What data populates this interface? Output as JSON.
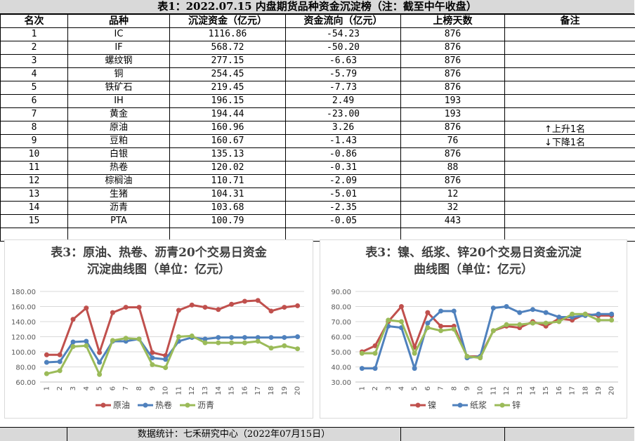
{
  "table": {
    "title": "表1：2022.07.15 内盘期货品种资金沉淀榜（注：截至中午收盘）",
    "headers": [
      "名次",
      "品种",
      "沉淀资金（亿元）",
      "资金流向（亿元）",
      "上榜天数",
      "备注"
    ],
    "rows": [
      [
        "1",
        "IC",
        "1116.86",
        "-54.23",
        "876"
      ],
      [
        "2",
        "IF",
        "568.72",
        "-50.20",
        "876"
      ],
      [
        "3",
        "螺纹钢",
        "277.15",
        "-6.63",
        "876"
      ],
      [
        "4",
        "铜",
        "254.45",
        "-5.79",
        "876"
      ],
      [
        "5",
        "铁矿石",
        "219.45",
        "-7.73",
        "876"
      ],
      [
        "6",
        "IH",
        "196.15",
        "2.49",
        "193"
      ],
      [
        "7",
        "黄金",
        "194.44",
        "-23.00",
        "193"
      ],
      [
        "8",
        "原油",
        "160.96",
        "3.26",
        "876"
      ],
      [
        "9",
        "豆粕",
        "160.67",
        "-1.43",
        "76"
      ],
      [
        "10",
        "白银",
        "135.13",
        "-0.86",
        "876"
      ],
      [
        "11",
        "热卷",
        "120.02",
        "-0.31",
        "88"
      ],
      [
        "12",
        "棕榈油",
        "110.71",
        "-2.09",
        "876"
      ],
      [
        "13",
        "生猪",
        "104.31",
        "-5.01",
        "12"
      ],
      [
        "14",
        "沥青",
        "103.68",
        "-2.35",
        "32"
      ],
      [
        "15",
        "PTA",
        "100.79",
        "-0.05",
        "443"
      ]
    ],
    "legend_up": "上升1名",
    "legend_down": "下降1名",
    "up_arrow": "↑",
    "down_arrow": "↓"
  },
  "footer": {
    "text": "数据统计：七禾研究中心（2022年07月15日）"
  },
  "chart_data": [
    {
      "type": "line",
      "title_line1": "表3：原油、热卷、沥青20个交易日资金",
      "title_line2": "沉淀曲线图（单位：亿元）",
      "x": [
        "1",
        "2",
        "3",
        "4",
        "5",
        "6",
        "7",
        "8",
        "9",
        "10",
        "11",
        "12",
        "13",
        "14",
        "15",
        "16",
        "17",
        "18",
        "19",
        "20"
      ],
      "ylim": [
        60,
        180
      ],
      "yticks": [
        "60.00",
        "80.00",
        "100.00",
        "120.00",
        "140.00",
        "160.00",
        "180.00"
      ],
      "grid": true,
      "legend_position": "bottom",
      "series": [
        {
          "name": "原油",
          "color": "#c0504d",
          "values": [
            96,
            96,
            143,
            158,
            99,
            152,
            159,
            159,
            99,
            95,
            155,
            162,
            159,
            156,
            163,
            167,
            168,
            154,
            159,
            161
          ]
        },
        {
          "name": "热卷",
          "color": "#4f81bd",
          "values": [
            86,
            87,
            113,
            114,
            86,
            114,
            114,
            117,
            92,
            90,
            114,
            119,
            117,
            119,
            119,
            119,
            119,
            119,
            119,
            120
          ]
        },
        {
          "name": "沥青",
          "color": "#9bbb59",
          "values": [
            71,
            75,
            107,
            108,
            70,
            115,
            118,
            117,
            83,
            79,
            120,
            121,
            112,
            112,
            112,
            112,
            114,
            105,
            108,
            104
          ]
        }
      ]
    },
    {
      "type": "line",
      "title_line1": "表3：镍、纸浆、锌20个交易日资金沉淀",
      "title_line2": "曲线图（单位：亿元）",
      "x": [
        "1",
        "2",
        "3",
        "4",
        "5",
        "6",
        "7",
        "8",
        "9",
        "10",
        "11",
        "12",
        "13",
        "14",
        "15",
        "16",
        "17",
        "18",
        "19",
        "20"
      ],
      "ylim": [
        30,
        90
      ],
      "yticks": [
        "30.00",
        "40.00",
        "50.00",
        "60.00",
        "70.00",
        "80.00",
        "90.00"
      ],
      "grid": true,
      "legend_position": "bottom",
      "series": [
        {
          "name": "镍",
          "color": "#c0504d",
          "values": [
            50,
            54,
            70,
            80,
            53,
            76,
            67,
            67,
            47,
            47,
            64,
            67,
            66,
            70,
            67,
            72,
            71,
            75,
            74,
            74
          ]
        },
        {
          "name": "纸浆",
          "color": "#4f81bd",
          "values": [
            39,
            39,
            67,
            66,
            39,
            69,
            77,
            77,
            46,
            47,
            79,
            80,
            76,
            78,
            76,
            73,
            73,
            74,
            75,
            75
          ]
        },
        {
          "name": "锌",
          "color": "#9bbb59",
          "values": [
            49,
            49,
            71,
            70,
            49,
            66,
            64,
            65,
            47,
            46,
            64,
            68,
            68,
            69,
            69,
            70,
            75,
            75,
            71,
            71
          ]
        }
      ]
    }
  ]
}
